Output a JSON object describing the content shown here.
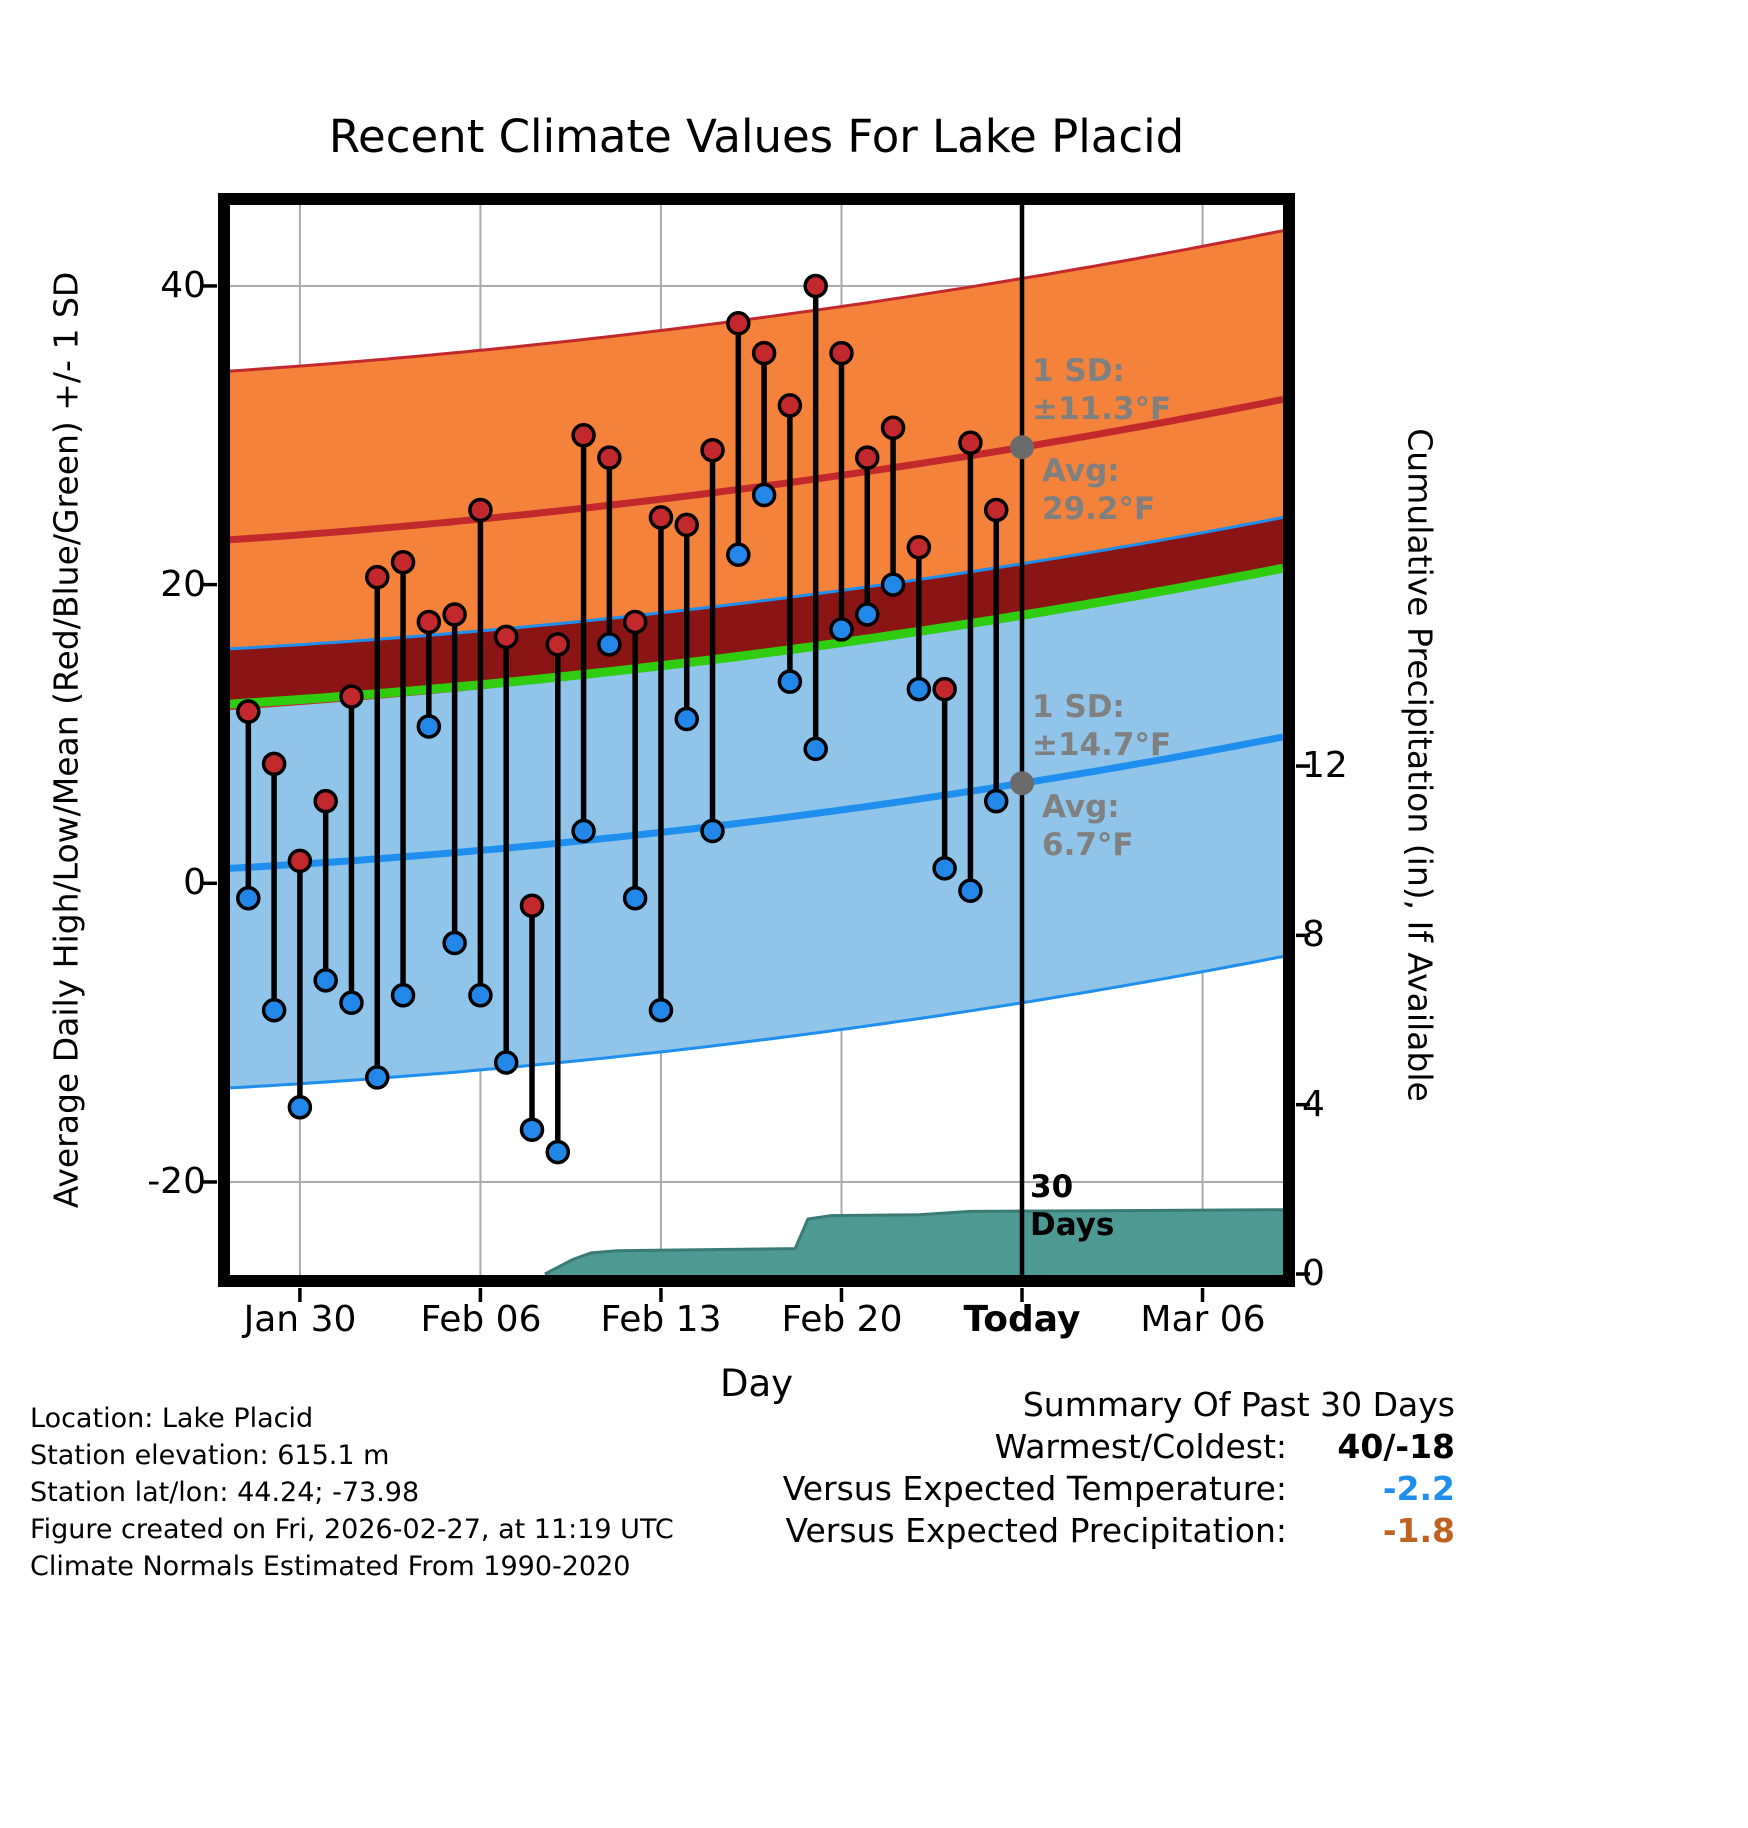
{
  "title": "Recent Climate Values For Lake Placid",
  "axes": {
    "ylabel_left": "Average Daily High/Low/Mean (Red/Blue/Green) +/- 1 SD",
    "ylabel_right": "Cumulative Precipitation (in), If Available",
    "xlabel": "Day",
    "y_ticks_left": [
      "40",
      "20",
      "0",
      "-20"
    ],
    "y_ticks_right": [
      "12",
      "8",
      "4",
      "0"
    ],
    "x_ticks": [
      "Jan 30",
      "Feb 06",
      "Feb 13",
      "Feb 20",
      "Today",
      "Mar 06"
    ]
  },
  "annotations": {
    "high_sd": "1 SD:\n±11.3°F",
    "high_avg": "Avg:\n29.2°F",
    "low_sd": "1 SD:\n±14.7°F",
    "low_avg": "Avg:\n6.7°F",
    "precip_days": "30\nDays"
  },
  "footer": {
    "lines": [
      "Location: Lake Placid",
      "Station elevation: 615.1 m",
      "Station lat/lon: 44.24; -73.98",
      "Figure created on Fri, 2026-02-27, at 11:19 UTC",
      "Climate Normals Estimated From 1990-2020"
    ]
  },
  "summary": {
    "title": "Summary Of Past 30 Days",
    "rows": [
      {
        "label": "Warmest/Coldest:",
        "value": "40/-18"
      },
      {
        "label": "Versus Expected Temperature:",
        "value": "-2.2"
      },
      {
        "label": "Versus Expected Precipitation:",
        "value": "-1.8"
      }
    ]
  },
  "chart_data": {
    "type": "line",
    "title": "Recent Climate Values For Lake Placid",
    "xlabel": "Day",
    "ylabel": "Average Daily High/Low/Mean (Red/Blue/Green) +/- 1 SD",
    "ylabel2": "Cumulative Precipitation (in), If Available",
    "x_tick_days": [
      0,
      7,
      14,
      21,
      28,
      35
    ],
    "x_tick_labels": [
      "Jan 30",
      "Feb 06",
      "Feb 13",
      "Feb 20",
      "Today",
      "Mar 06"
    ],
    "xlim_days": [
      -2.71,
      38.12
    ],
    "ylim_temp": [
      -26.23,
      45.42
    ],
    "y_ticks_temp": [
      40,
      20,
      0,
      -20
    ],
    "y_ticks_precip": [
      12,
      8,
      4,
      0
    ],
    "today_day": 28,
    "days": [
      -2,
      -1,
      0,
      1,
      2,
      3,
      4,
      5,
      6,
      7,
      8,
      9,
      10,
      11,
      12,
      13,
      14,
      15,
      16,
      17,
      18,
      19,
      20,
      21,
      22,
      23,
      24,
      25,
      26,
      27
    ],
    "daily_high": [
      11.5,
      8,
      1.5,
      5.5,
      12.5,
      20.5,
      21.5,
      17.5,
      18,
      25,
      16.5,
      -1.5,
      16,
      30,
      28.5,
      17.5,
      24.5,
      24,
      29,
      37.5,
      35.5,
      32,
      40,
      35.5,
      28.5,
      30.5,
      22.5,
      13,
      29.5,
      25
    ],
    "daily_low": [
      -1,
      -8.5,
      -15,
      -6.5,
      -8,
      -13,
      -7.5,
      10.5,
      -4,
      -7.5,
      -12,
      -16.5,
      -18,
      3.5,
      16,
      -1,
      -8.5,
      11,
      3.5,
      22,
      26,
      13.5,
      9,
      17,
      18,
      20,
      13,
      1,
      -0.5,
      5.5
    ],
    "high_mean": {
      "sd": 11.3,
      "avg_at_today": 29.2,
      "anchor_days": [
        -2.71,
        28,
        38.12
      ],
      "anchor_values": [
        23.0,
        29.2,
        32.4
      ]
    },
    "low_mean": {
      "sd": 14.7,
      "avg_at_today": 6.7,
      "anchor_days": [
        -2.71,
        28,
        38.12
      ],
      "anchor_values": [
        1.0,
        6.7,
        9.8
      ]
    },
    "precip_cumulative": {
      "days": [
        9.5,
        10.6,
        11.3,
        12.3,
        19.2,
        19.7,
        20.6,
        24.0,
        26.0,
        38.12
      ],
      "values": [
        0.0,
        0.35,
        0.5,
        0.55,
        0.6,
        1.3,
        1.38,
        1.4,
        1.48,
        1.52
      ]
    },
    "colors": {
      "high_band": "#F5823A",
      "high_line": "#C3282D",
      "overlap_band": "#8B1414",
      "low_band": "#90C4E8",
      "low_line": "#1E8FEF",
      "mean_line": "#2FCC0F",
      "high_marker": "#C3282D",
      "low_marker": "#2287E8",
      "precip_fill": "#4D9A94",
      "precip_edge": "#3A7B76",
      "grid": "#ABABAB",
      "avg_dot": "#6B6B6B",
      "annotation_gray": "#808080",
      "summary_temp_value": "#1E8FEF",
      "summary_precip_value": "#C0621F"
    }
  }
}
